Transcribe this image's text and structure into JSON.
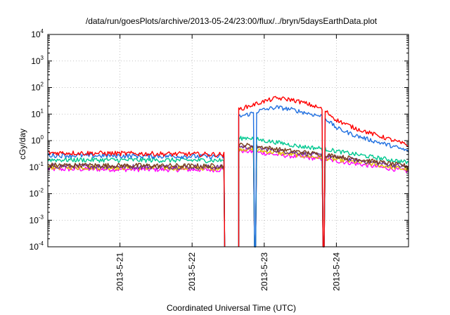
{
  "chart_data": {
    "type": "line",
    "title": "/data/run/goesPlots/archive/2013-05-24/23:00/flux/../bryn/5daysEarthData.plot",
    "xlabel": "Coordinated Universal Time (UTC)",
    "ylabel": "cGy/day",
    "y_scale": "log",
    "ylim": [
      0.0001,
      10000
    ],
    "xlim": [
      "2013-05-20 00:00",
      "2013-05-25 00:00"
    ],
    "grid": true,
    "legend": "none",
    "y_ticks": [
      {
        "base": "10",
        "exp": "-4"
      },
      {
        "base": "10",
        "exp": "-3"
      },
      {
        "base": "10",
        "exp": "-2"
      },
      {
        "base": "10",
        "exp": "-1"
      },
      {
        "base": "10",
        "exp": "0"
      },
      {
        "base": "10",
        "exp": "1"
      },
      {
        "base": "10",
        "exp": "2"
      },
      {
        "base": "10",
        "exp": "3"
      },
      {
        "base": "10",
        "exp": "4"
      }
    ],
    "x_ticks": [
      "2013-5-21",
      "2013-5-22",
      "2013-5-23",
      "2013-5-24"
    ],
    "x_tick_dates": [
      "2013-05-21 00:00",
      "2013-05-22 00:00",
      "2013-05-23 00:00",
      "2013-05-24 00:00"
    ],
    "data_gaps": [
      {
        "start": "2013-05-22 10:50",
        "end": "2013-05-22 15:30"
      }
    ],
    "dropouts": [
      {
        "time": "2013-05-22 21:00",
        "series": "all except red"
      },
      {
        "time": "2013-05-23 19:45",
        "series": "all"
      }
    ],
    "series": [
      {
        "color": "#ff0000",
        "x": [
          "2013-05-20 00:00",
          "2013-05-22 10:50",
          "2013-05-22 15:30",
          "2013-05-22 19:00",
          "2013-05-22 23:00",
          "2013-05-23 04:00",
          "2013-05-23 09:00",
          "2013-05-23 14:00",
          "2013-05-23 19:45",
          "2013-05-24 00:00",
          "2013-05-24 06:00",
          "2013-05-24 12:00",
          "2013-05-24 18:00",
          "2013-05-25 00:00"
        ],
        "y": [
          0.35,
          0.3,
          15,
          20,
          28,
          40,
          35,
          25,
          15,
          6,
          3,
          1.8,
          1.1,
          0.65
        ]
      },
      {
        "color": "#1f6fe0",
        "x": [
          "2013-05-20 00:00",
          "2013-05-22 10:50",
          "2013-05-22 15:30",
          "2013-05-22 19:00",
          "2013-05-22 23:00",
          "2013-05-23 04:00",
          "2013-05-23 09:00",
          "2013-05-23 14:00",
          "2013-05-23 19:45",
          "2013-05-24 00:00",
          "2013-05-24 06:00",
          "2013-05-24 12:00",
          "2013-05-24 18:00",
          "2013-05-25 00:00"
        ],
        "y": [
          0.28,
          0.25,
          8,
          10,
          14,
          18,
          15,
          11,
          8,
          3,
          1.6,
          1.0,
          0.65,
          0.4
        ]
      },
      {
        "color": "#00c890",
        "x": [
          "2013-05-20 00:00",
          "2013-05-22 10:50",
          "2013-05-22 15:30",
          "2013-05-22 19:00",
          "2013-05-23 00:00",
          "2013-05-23 06:00",
          "2013-05-23 12:00",
          "2013-05-23 19:45",
          "2013-05-24 00:00",
          "2013-05-24 12:00",
          "2013-05-25 00:00"
        ],
        "y": [
          0.19,
          0.18,
          1.2,
          1.3,
          1.0,
          0.8,
          0.6,
          0.5,
          0.4,
          0.24,
          0.15
        ]
      },
      {
        "color": "#7a3f1c",
        "x": [
          "2013-05-20 00:00",
          "2013-05-22 10:50",
          "2013-05-22 15:30",
          "2013-05-22 20:00",
          "2013-05-23 06:00",
          "2013-05-23 19:45",
          "2013-05-24 12:00",
          "2013-05-25 00:00"
        ],
        "y": [
          0.12,
          0.11,
          0.7,
          0.65,
          0.45,
          0.3,
          0.17,
          0.11
        ]
      },
      {
        "color": "#6f2a8f",
        "x": [
          "2013-05-20 00:00",
          "2013-05-22 10:50",
          "2013-05-22 15:30",
          "2013-05-22 20:00",
          "2013-05-23 06:00",
          "2013-05-23 19:45",
          "2013-05-24 12:00",
          "2013-05-25 00:00"
        ],
        "y": [
          0.11,
          0.1,
          0.6,
          0.55,
          0.4,
          0.27,
          0.15,
          0.1
        ]
      },
      {
        "color": "#e0c000",
        "x": [
          "2013-05-20 00:00",
          "2013-05-22 10:50",
          "2013-05-22 15:30",
          "2013-05-22 20:00",
          "2013-05-23 06:00",
          "2013-05-23 19:45",
          "2013-05-24 12:00",
          "2013-05-25 00:00"
        ],
        "y": [
          0.1,
          0.09,
          0.5,
          0.45,
          0.33,
          0.22,
          0.13,
          0.08
        ]
      },
      {
        "color": "#ff00ff",
        "x": [
          "2013-05-20 00:00",
          "2013-05-22 10:50",
          "2013-05-22 15:30",
          "2013-05-22 20:00",
          "2013-05-23 06:00",
          "2013-05-23 19:45",
          "2013-05-24 12:00",
          "2013-05-25 00:00"
        ],
        "y": [
          0.085,
          0.08,
          0.42,
          0.38,
          0.28,
          0.2,
          0.11,
          0.07
        ]
      }
    ]
  }
}
